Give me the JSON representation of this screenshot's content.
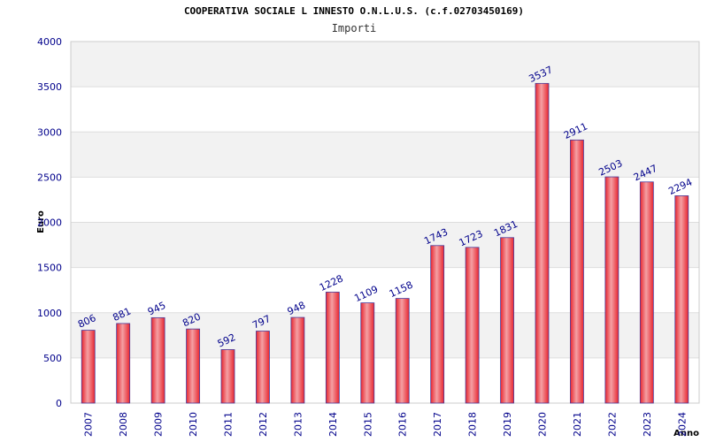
{
  "chart_data": {
    "type": "bar",
    "title": "COOPERATIVA SOCIALE L INNESTO O.N.L.U.S. (c.f.02703450169)",
    "subtitle": "Importi",
    "xlabel": "Anno",
    "ylabel": "Euro",
    "ylim": [
      0,
      4000
    ],
    "yticks": [
      "0",
      "500",
      "1000",
      "1500",
      "2000",
      "2500",
      "3000",
      "3500",
      "4000"
    ],
    "categories": [
      "2007",
      "2008",
      "2009",
      "2010",
      "2011",
      "2012",
      "2013",
      "2014",
      "2015",
      "2016",
      "2017",
      "2018",
      "2019",
      "2020",
      "2021",
      "2022",
      "2023",
      "2024"
    ],
    "values": [
      806,
      881,
      945,
      820,
      592,
      797,
      948,
      1228,
      1109,
      1158,
      1743,
      1723,
      1831,
      3537,
      2911,
      2503,
      2447,
      2294
    ],
    "grid": true,
    "colors": {
      "bar": "#e8262f",
      "bar_highlight": "#f4a0a4",
      "bar_edge": "#4a3a9a",
      "tick_text": "#00008b",
      "band": "#f2f2f2",
      "grid": "#dddddd"
    }
  }
}
